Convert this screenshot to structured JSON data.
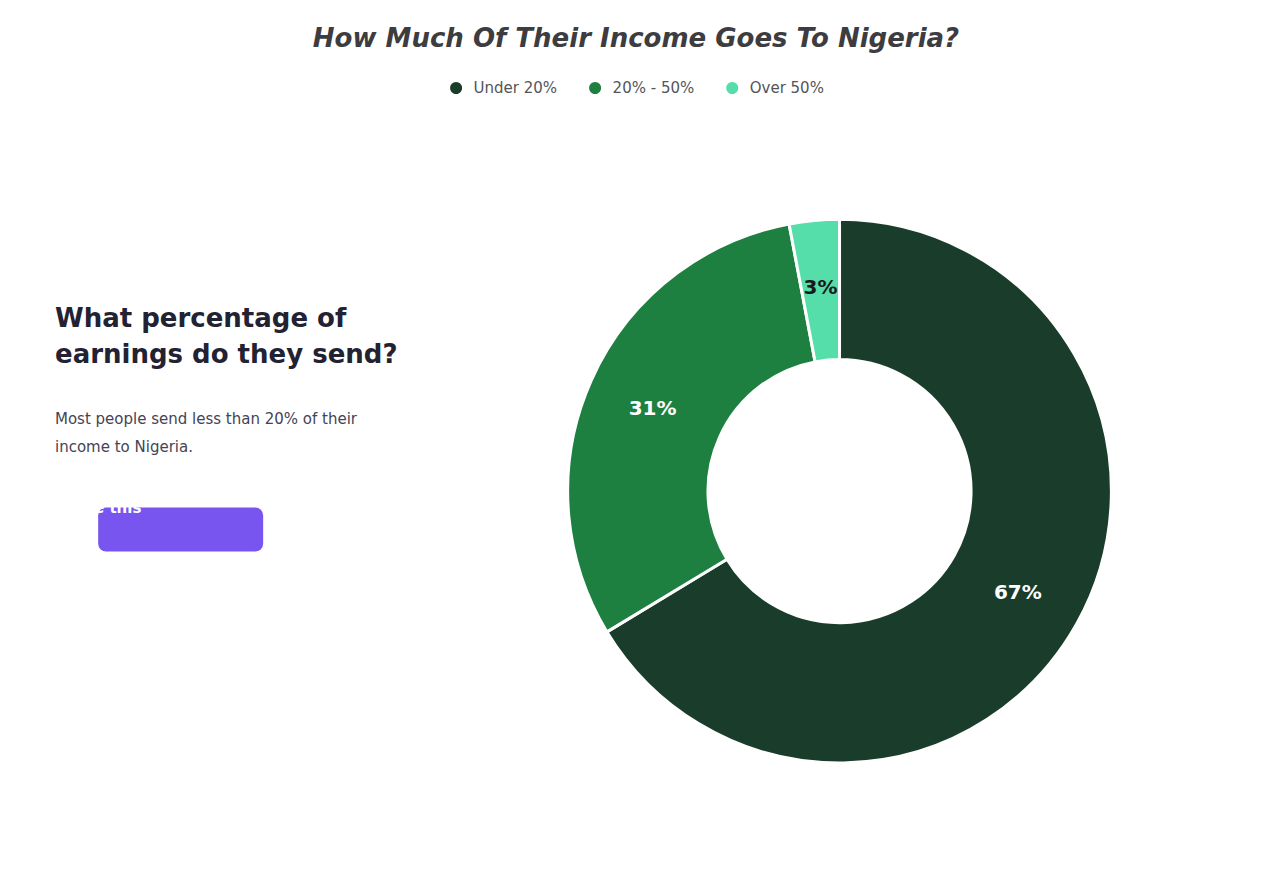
{
  "chart_data": {
    "type": "pie",
    "title": "How Much Of Their Income Goes To Nigeria?",
    "categories": [
      "Under 20%",
      "20% - 50%",
      "Over 50%"
    ],
    "values": [
      67,
      31,
      3
    ],
    "value_labels": [
      "67%",
      "31%",
      "3%"
    ],
    "colors": [
      "#1a3d2b",
      "#1e8040",
      "#55ddaa"
    ],
    "data_labels": true,
    "legend": "top",
    "annotations": [
      "What percentage of\nearnings do they send?",
      "Most people send less than 20% of their\nincome to Nigeria.",
      "Share this"
    ]
  }
}
